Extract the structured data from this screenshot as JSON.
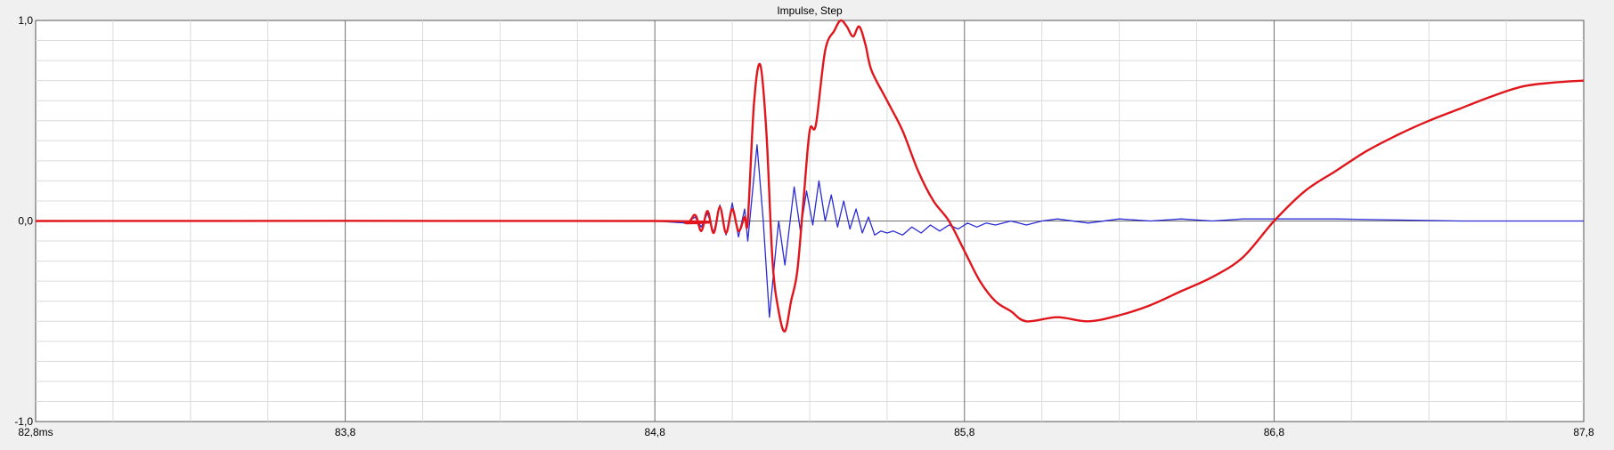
{
  "chart_data": {
    "type": "line",
    "title": "Impulse, Step",
    "xlabel": "",
    "ylabel": "",
    "xlim": [
      82.8,
      87.8
    ],
    "ylim": [
      -1.0,
      1.0
    ],
    "x_ticks": [
      {
        "value": 82.8,
        "label": "82,8ms"
      },
      {
        "value": 83.8,
        "label": "83,8"
      },
      {
        "value": 84.8,
        "label": "84,8"
      },
      {
        "value": 85.8,
        "label": "85,8"
      },
      {
        "value": 86.8,
        "label": "86,8"
      },
      {
        "value": 87.8,
        "label": "87,8"
      }
    ],
    "y_ticks": [
      {
        "value": 1.0,
        "label": "1,0"
      },
      {
        "value": 0.0,
        "label": "0,0"
      },
      {
        "value": -1.0,
        "label": "-1,0"
      }
    ],
    "grid": true,
    "series": [
      {
        "color": "#2b2bd6",
        "width": 1.3,
        "x": [
          82.8,
          84.8,
          84.9,
          84.93,
          84.95,
          84.97,
          84.99,
          85.01,
          85.03,
          85.05,
          85.07,
          85.09,
          85.1,
          85.13,
          85.15,
          85.17,
          85.19,
          85.2,
          85.22,
          85.25,
          85.27,
          85.29,
          85.31,
          85.33,
          85.35,
          85.37,
          85.39,
          85.41,
          85.43,
          85.45,
          85.47,
          85.49,
          85.51,
          85.53,
          85.55,
          85.57,
          85.6,
          85.63,
          85.66,
          85.69,
          85.72,
          85.75,
          85.78,
          85.81,
          85.84,
          85.87,
          85.9,
          85.95,
          86.0,
          86.05,
          86.1,
          86.2,
          86.3,
          86.4,
          86.5,
          86.6,
          86.7,
          86.8,
          87.0,
          87.4,
          87.8
        ],
        "y": [
          0.0,
          0.0,
          -0.01,
          0.02,
          -0.03,
          0.04,
          -0.06,
          0.08,
          -0.07,
          0.09,
          -0.08,
          0.06,
          -0.1,
          0.38,
          0.0,
          -0.48,
          -0.15,
          0.0,
          -0.22,
          0.17,
          -0.05,
          0.15,
          -0.02,
          0.2,
          0.0,
          0.13,
          -0.03,
          0.1,
          -0.04,
          0.06,
          -0.06,
          0.02,
          -0.07,
          -0.05,
          -0.06,
          -0.05,
          -0.07,
          -0.03,
          -0.06,
          -0.02,
          -0.05,
          -0.02,
          -0.04,
          -0.01,
          -0.03,
          -0.01,
          -0.02,
          0.0,
          -0.02,
          0.0,
          0.01,
          -0.01,
          0.01,
          0.0,
          0.01,
          0.0,
          0.01,
          0.01,
          0.01,
          0.0,
          0.0
        ],
        "smooth": false
      },
      {
        "color": "#e0161c",
        "width": 2.4,
        "x": [
          82.8,
          84.8,
          84.9,
          84.93,
          84.95,
          84.97,
          84.99,
          85.01,
          85.03,
          85.05,
          85.07,
          85.09,
          85.1,
          85.12,
          85.14,
          85.16,
          85.18,
          85.2,
          85.22,
          85.24,
          85.26,
          85.28,
          85.3,
          85.32,
          85.35,
          85.38,
          85.4,
          85.42,
          85.44,
          85.46,
          85.48,
          85.5,
          85.55,
          85.6,
          85.65,
          85.7,
          85.75,
          85.8,
          85.85,
          85.9,
          85.95,
          86.0,
          86.1,
          86.2,
          86.3,
          86.4,
          86.5,
          86.6,
          86.7,
          86.8,
          86.9,
          87.0,
          87.1,
          87.2,
          87.3,
          87.4,
          87.5,
          87.6,
          87.7,
          87.8
        ],
        "y": [
          0.0,
          0.0,
          -0.01,
          0.03,
          -0.05,
          0.05,
          -0.06,
          0.07,
          -0.06,
          0.06,
          -0.05,
          0.02,
          0.0,
          0.58,
          0.78,
          0.45,
          -0.2,
          -0.45,
          -0.55,
          -0.4,
          -0.25,
          0.1,
          0.45,
          0.48,
          0.85,
          0.95,
          1.0,
          0.97,
          0.92,
          0.97,
          0.88,
          0.75,
          0.6,
          0.45,
          0.25,
          0.1,
          0.0,
          -0.15,
          -0.3,
          -0.4,
          -0.45,
          -0.5,
          -0.48,
          -0.5,
          -0.47,
          -0.42,
          -0.35,
          -0.28,
          -0.18,
          0.0,
          0.15,
          0.25,
          0.35,
          0.43,
          0.5,
          0.56,
          0.62,
          0.67,
          0.69,
          0.7
        ],
        "smooth": true
      }
    ]
  }
}
